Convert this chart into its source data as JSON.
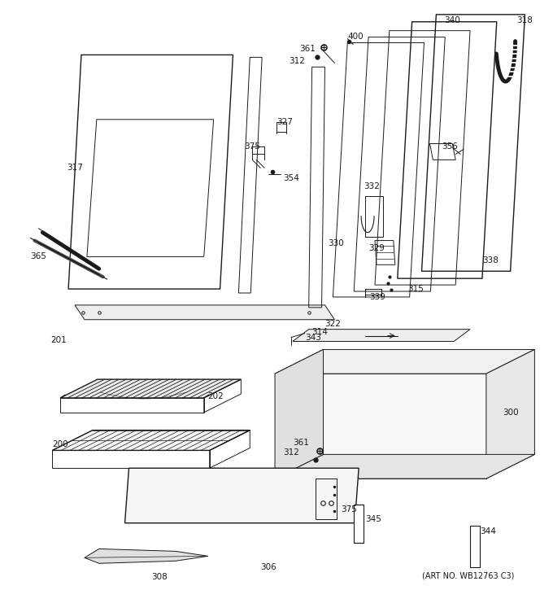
{
  "background_color": "#ffffff",
  "line_color": "#1a1a1a",
  "label_color": "#1a1a1a",
  "fig_width": 6.8,
  "fig_height": 7.25,
  "dpi": 100,
  "footer_text": "(ART NO. WB12763 C3)"
}
